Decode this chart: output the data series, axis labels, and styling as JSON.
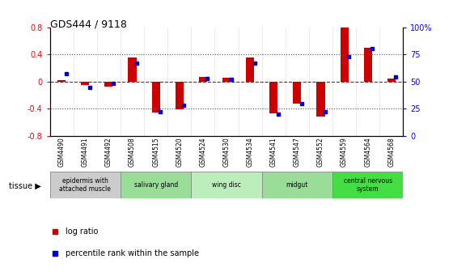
{
  "title": "GDS444 / 9118",
  "samples": [
    "GSM4490",
    "GSM4491",
    "GSM4492",
    "GSM4508",
    "GSM4515",
    "GSM4520",
    "GSM4524",
    "GSM4530",
    "GSM4534",
    "GSM4541",
    "GSM4547",
    "GSM4552",
    "GSM4559",
    "GSM4564",
    "GSM4568"
  ],
  "log_ratio": [
    0.02,
    -0.05,
    -0.07,
    0.35,
    -0.46,
    -0.41,
    0.07,
    0.06,
    0.35,
    -0.47,
    -0.32,
    -0.52,
    0.8,
    0.5,
    0.04
  ],
  "percentile": [
    57,
    45,
    48,
    67,
    22,
    28,
    53,
    52,
    67,
    20,
    30,
    22,
    73,
    80,
    54
  ],
  "tissue_groups": [
    {
      "label": "epidermis with\nattached muscle",
      "start": 0,
      "end": 3,
      "color": "#cccccc"
    },
    {
      "label": "salivary gland",
      "start": 3,
      "end": 6,
      "color": "#99dd99"
    },
    {
      "label": "wing disc",
      "start": 6,
      "end": 9,
      "color": "#bbeebb"
    },
    {
      "label": "midgut",
      "start": 9,
      "end": 12,
      "color": "#99dd99"
    },
    {
      "label": "central nervous\nsystem",
      "start": 12,
      "end": 15,
      "color": "#44dd44"
    }
  ],
  "bar_color_red": "#cc0000",
  "bar_color_blue": "#0000cc",
  "ylim_left": [
    -0.8,
    0.8
  ],
  "ylim_right": [
    0,
    100
  ],
  "yticks_left": [
    -0.8,
    -0.4,
    0.0,
    0.4,
    0.8
  ],
  "ytick_labels_left": [
    "-0.8",
    "-0.4",
    "0",
    "0.4",
    "0.8"
  ],
  "yticks_right": [
    0,
    25,
    50,
    75,
    100
  ],
  "ytick_labels_right": [
    "0",
    "25",
    "50",
    "75",
    "100%"
  ],
  "hline_color": "#cc0000",
  "dotted_color": "#555555",
  "bg_color": "#ffffff",
  "plot_bg": "#ffffff",
  "bar_width": 0.5,
  "tissue_label": "tissue",
  "legend_log": "log ratio",
  "legend_pct": "percentile rank within the sample"
}
